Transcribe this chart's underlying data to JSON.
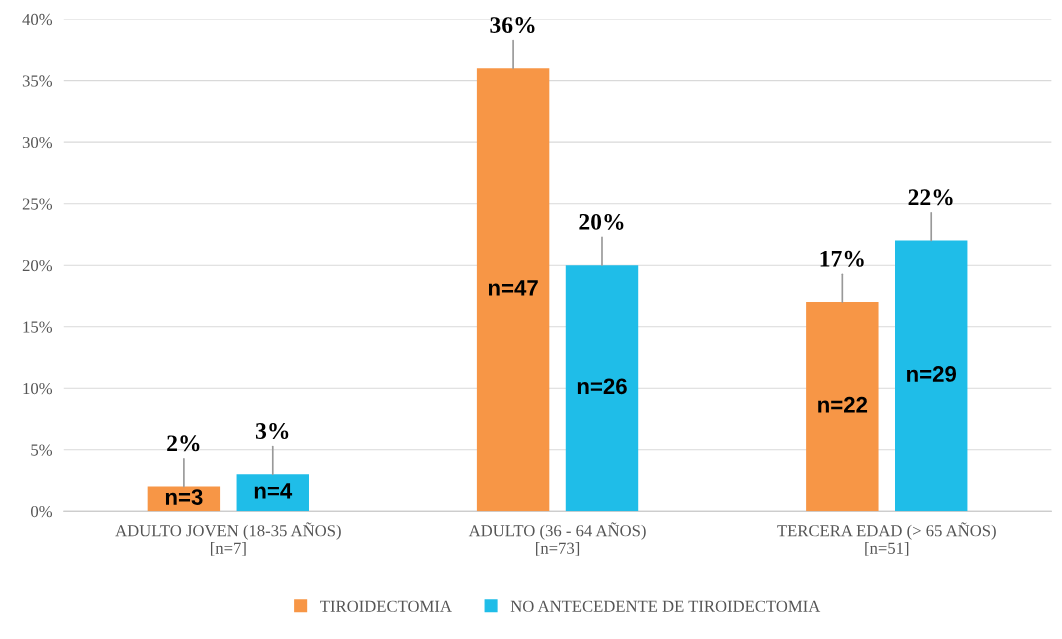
{
  "chart_data": {
    "type": "bar",
    "categories": [
      "ADULTO JOVEN (18-35 AÑOS)\n[n=7]",
      "ADULTO (36 - 64 AÑOS)\n[n=73]",
      "TERCERA EDAD (> 65 AÑOS)\n[n=51]"
    ],
    "series": [
      {
        "name": "TIROIDECTOMIA",
        "color": "#f79646",
        "values": [
          2,
          36,
          17
        ],
        "value_labels": [
          "2%",
          "36%",
          "17%"
        ]
      },
      {
        "name": "NO ANTECEDENTE DE TIROIDECTOMIA",
        "color": "#1fbde8",
        "values": [
          3,
          20,
          22
        ],
        "value_labels": [
          "3%",
          "20%",
          "22%"
        ]
      }
    ],
    "annotations": [
      "n=3",
      "n=4",
      "n=47",
      "n=26",
      "n=22",
      "n=29"
    ],
    "ylim": [
      0,
      40
    ],
    "yticks": [
      {
        "value": 0,
        "label": "0%"
      },
      {
        "value": 5,
        "label": "5%"
      },
      {
        "value": 10,
        "label": "10%"
      },
      {
        "value": 15,
        "label": "15%"
      },
      {
        "value": 20,
        "label": "20%"
      },
      {
        "value": 25,
        "label": "25%"
      },
      {
        "value": 30,
        "label": "30%"
      },
      {
        "value": 35,
        "label": "35%"
      },
      {
        "value": 40,
        "label": "40%"
      }
    ],
    "grid": "y",
    "legend": "bottom"
  }
}
